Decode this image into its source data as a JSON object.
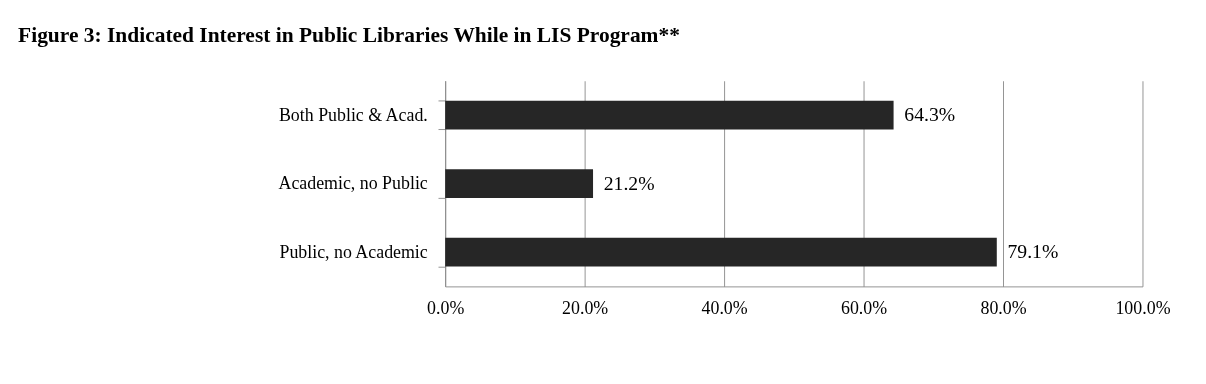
{
  "chart_data": {
    "type": "bar",
    "orientation": "horizontal",
    "title": "Figure 3: Indicated Interest in Public Libraries While in LIS Program**",
    "categories": [
      "Both Public & Acad.",
      "Academic, no Public",
      "Public, no Academic"
    ],
    "values": [
      64.3,
      21.2,
      79.1
    ],
    "value_labels": [
      "64.3%",
      "21.2%",
      "79.1%"
    ],
    "color": "#262626",
    "xlim": [
      0,
      100
    ],
    "xticks": [
      {
        "value": 0,
        "label": "0.0%"
      },
      {
        "value": 20,
        "label": "20.0%"
      },
      {
        "value": 40,
        "label": "40.0%"
      },
      {
        "value": 60,
        "label": "60.0%"
      },
      {
        "value": 80,
        "label": "80.0%"
      },
      {
        "value": 100,
        "label": "100.0%"
      }
    ],
    "grid": "x"
  }
}
